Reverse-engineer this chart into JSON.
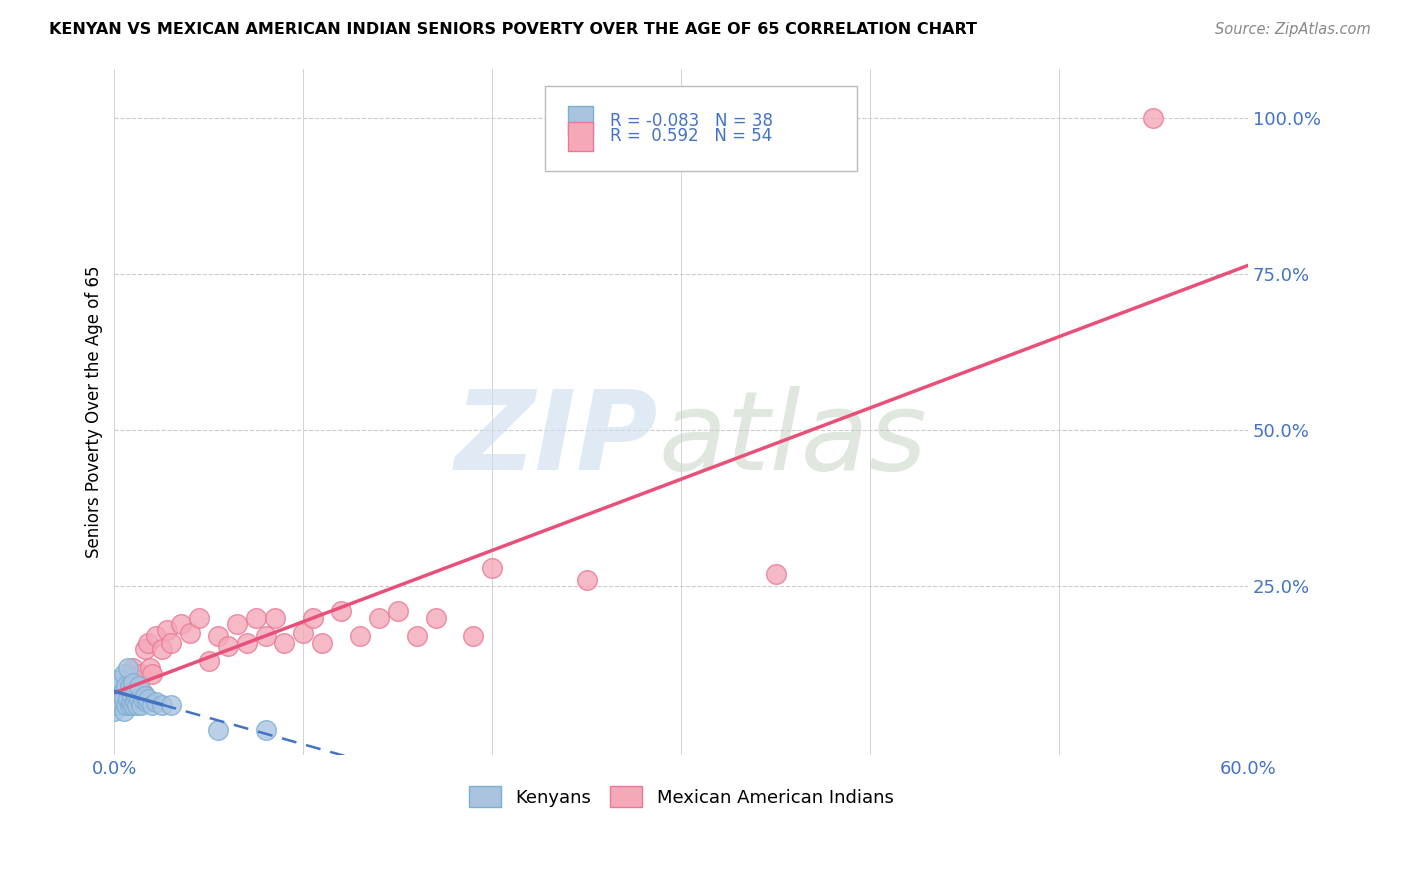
{
  "title": "KENYAN VS MEXICAN AMERICAN INDIAN SENIORS POVERTY OVER THE AGE OF 65 CORRELATION CHART",
  "source": "Source: ZipAtlas.com",
  "ylabel": "Seniors Poverty Over the Age of 65",
  "xlim": [
    0.0,
    0.6
  ],
  "ylim": [
    -0.02,
    1.08
  ],
  "xtick_labels": [
    "0.0%",
    "",
    "",
    "",
    "",
    "",
    "60.0%"
  ],
  "xtick_positions": [
    0.0,
    0.1,
    0.2,
    0.3,
    0.4,
    0.5,
    0.6
  ],
  "ytick_labels": [
    "100.0%",
    "75.0%",
    "50.0%",
    "25.0%"
  ],
  "ytick_positions": [
    1.0,
    0.75,
    0.5,
    0.25
  ],
  "kenyan_color": "#aac4e0",
  "mexican_color": "#f4a8b8",
  "kenyan_edge": "#7bafd4",
  "mexican_edge": "#e87898",
  "kenyan_R": -0.083,
  "kenyan_N": 38,
  "mexican_R": 0.592,
  "mexican_N": 54,
  "kenyan_line_color": "#4472c4",
  "mexican_line_color": "#e8507a",
  "legend_label_kenyan": "Kenyans",
  "legend_label_mexican": "Mexican American Indians",
  "background_color": "#ffffff",
  "kenyan_x": [
    0.0,
    0.0,
    0.0,
    0.002,
    0.002,
    0.003,
    0.003,
    0.004,
    0.004,
    0.005,
    0.005,
    0.005,
    0.006,
    0.006,
    0.007,
    0.007,
    0.008,
    0.008,
    0.009,
    0.009,
    0.01,
    0.01,
    0.011,
    0.011,
    0.012,
    0.013,
    0.013,
    0.014,
    0.015,
    0.016,
    0.017,
    0.018,
    0.02,
    0.022,
    0.025,
    0.03,
    0.055,
    0.08
  ],
  "kenyan_y": [
    0.05,
    0.08,
    0.1,
    0.06,
    0.09,
    0.07,
    0.1,
    0.06,
    0.08,
    0.05,
    0.07,
    0.11,
    0.06,
    0.09,
    0.07,
    0.12,
    0.06,
    0.09,
    0.065,
    0.08,
    0.06,
    0.095,
    0.065,
    0.08,
    0.06,
    0.07,
    0.09,
    0.06,
    0.07,
    0.075,
    0.065,
    0.07,
    0.06,
    0.065,
    0.06,
    0.06,
    0.02,
    0.02
  ],
  "mexican_x": [
    0.0,
    0.0,
    0.002,
    0.003,
    0.004,
    0.004,
    0.005,
    0.006,
    0.006,
    0.007,
    0.008,
    0.008,
    0.009,
    0.01,
    0.01,
    0.011,
    0.012,
    0.013,
    0.014,
    0.015,
    0.016,
    0.018,
    0.019,
    0.02,
    0.022,
    0.025,
    0.028,
    0.03,
    0.035,
    0.04,
    0.045,
    0.05,
    0.055,
    0.06,
    0.065,
    0.07,
    0.075,
    0.08,
    0.085,
    0.09,
    0.1,
    0.105,
    0.11,
    0.12,
    0.13,
    0.14,
    0.15,
    0.16,
    0.17,
    0.19,
    0.2,
    0.25,
    0.35,
    0.55
  ],
  "mexican_y": [
    0.06,
    0.09,
    0.06,
    0.08,
    0.06,
    0.1,
    0.07,
    0.06,
    0.095,
    0.08,
    0.065,
    0.11,
    0.08,
    0.07,
    0.12,
    0.09,
    0.075,
    0.1,
    0.11,
    0.08,
    0.15,
    0.16,
    0.12,
    0.11,
    0.17,
    0.15,
    0.18,
    0.16,
    0.19,
    0.175,
    0.2,
    0.13,
    0.17,
    0.155,
    0.19,
    0.16,
    0.2,
    0.17,
    0.2,
    0.16,
    0.175,
    0.2,
    0.16,
    0.21,
    0.17,
    0.2,
    0.21,
    0.17,
    0.2,
    0.17,
    0.28,
    0.26,
    0.27,
    1.0
  ]
}
